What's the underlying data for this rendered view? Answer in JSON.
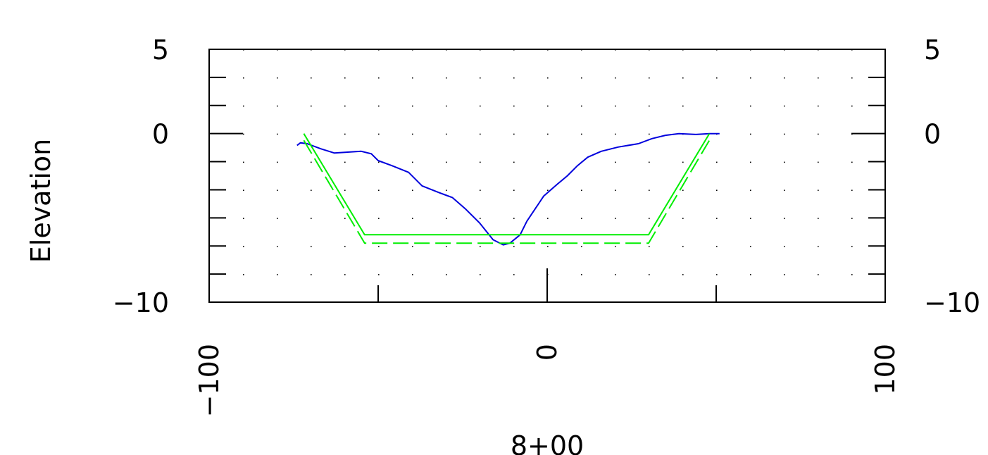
{
  "chart_data": {
    "type": "line",
    "title": "",
    "xlabel": "8+00",
    "ylabel": "Elevation",
    "xlim": [
      -100,
      100
    ],
    "ylim": [
      -10,
      5
    ],
    "x_ticks": [
      -100,
      0,
      100
    ],
    "x_tick_labels": [
      "−100",
      "0",
      "100"
    ],
    "y_ticks": [
      5,
      0,
      -10
    ],
    "y_tick_labels": [
      "5",
      "0",
      "−10"
    ],
    "grid": "dotted",
    "series": [
      {
        "color": "#0000dd",
        "style": "solid",
        "x": [
          -74,
          -73,
          -71,
          -67,
          -63,
          -59,
          -55,
          -52,
          -50,
          -46,
          -41,
          -37,
          -32,
          -28,
          -24,
          -20,
          -16,
          -13,
          -11,
          -8,
          -6,
          -3,
          -1,
          3,
          6,
          9,
          12,
          16,
          21,
          27,
          31,
          35,
          39,
          44,
          48,
          51
        ],
        "y": [
          -0.7,
          -0.55,
          -0.6,
          -0.9,
          -1.15,
          -1.1,
          -1.05,
          -1.2,
          -1.6,
          -1.9,
          -2.3,
          -3.1,
          -3.5,
          -3.8,
          -4.5,
          -5.3,
          -6.3,
          -6.6,
          -6.5,
          -6.0,
          -5.2,
          -4.3,
          -3.7,
          -3.0,
          -2.5,
          -1.9,
          -1.4,
          -1.05,
          -0.8,
          -0.6,
          -0.3,
          -0.1,
          0.0,
          -0.05,
          0.0,
          0.0
        ]
      },
      {
        "color": "#00ee00",
        "style": "solid",
        "x": [
          -72,
          -54,
          30,
          48
        ],
        "y": [
          0,
          -6,
          -6,
          0
        ]
      },
      {
        "color": "#00ee00",
        "style": "dashed",
        "x": [
          -72,
          -54,
          30,
          48
        ],
        "y": [
          -0.4,
          -6.5,
          -6.5,
          -0.4
        ]
      }
    ]
  }
}
